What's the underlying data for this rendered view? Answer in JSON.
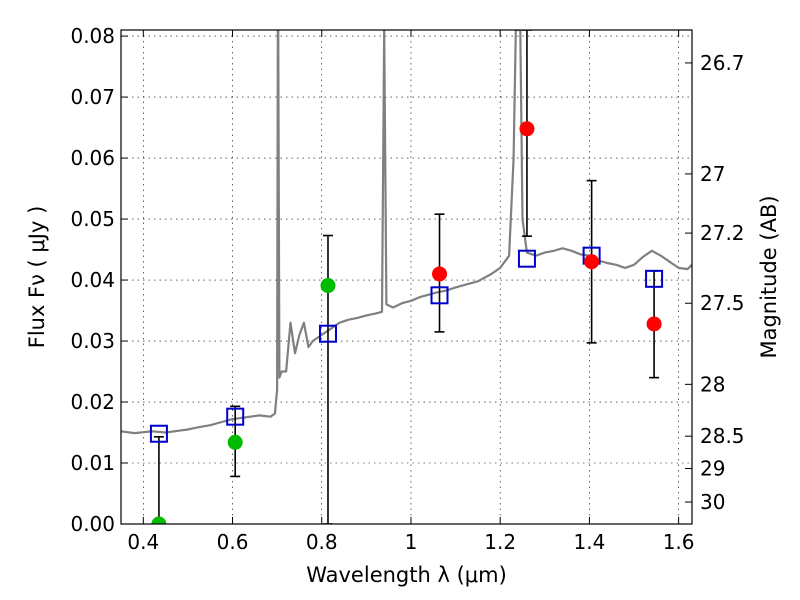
{
  "chart_data": {
    "type": "scatter",
    "xlabel": "Wavelength  λ (μm)",
    "ylabel": "Flux  Fν  ( μJy )",
    "y2label": "Magnitude (AB)",
    "xlim": [
      0.35,
      1.63
    ],
    "ylim": [
      0.0,
      0.081
    ],
    "grid": true,
    "x_ticks": [
      0.4,
      0.6,
      0.8,
      1.0,
      1.2,
      1.4,
      1.6
    ],
    "x_tick_labels": [
      "0.4",
      "0.6",
      "0.8",
      "1",
      "1.2",
      "1.4",
      "1.6"
    ],
    "y_ticks": [
      0.0,
      0.01,
      0.02,
      0.03,
      0.04,
      0.05,
      0.06,
      0.07,
      0.08
    ],
    "y_tick_labels": [
      "0.00",
      "0.01",
      "0.02",
      "0.03",
      "0.04",
      "0.05",
      "0.06",
      "0.07",
      "0.08"
    ],
    "right_axis_ticks": [
      {
        "label": "26.7",
        "flux": 0.0756
      },
      {
        "label": "27",
        "flux": 0.0574
      },
      {
        "label": "27.2",
        "flux": 0.0477
      },
      {
        "label": "27.5",
        "flux": 0.0362
      },
      {
        "label": "28",
        "flux": 0.0229
      },
      {
        "label": "28.5",
        "flux": 0.0144
      },
      {
        "label": "29",
        "flux": 0.0091
      },
      {
        "label": "30",
        "flux": 0.0036
      }
    ],
    "colors": {
      "model": "#808080",
      "model_photometry": "#0000cc",
      "measured": "#ff0000",
      "limits": "#00bb00",
      "errorbar": "#000000"
    },
    "series": [
      {
        "marker": "line",
        "values": [
          [
            0.35,
            0.0152
          ],
          [
            0.38,
            0.0149
          ],
          [
            0.42,
            0.0152
          ],
          [
            0.45,
            0.015
          ],
          [
            0.48,
            0.0153
          ],
          [
            0.5,
            0.0155
          ],
          [
            0.52,
            0.0158
          ],
          [
            0.55,
            0.0162
          ],
          [
            0.58,
            0.0168
          ],
          [
            0.6,
            0.0172
          ],
          [
            0.63,
            0.0175
          ],
          [
            0.66,
            0.0178
          ],
          [
            0.685,
            0.0176
          ],
          [
            0.695,
            0.0181
          ],
          [
            0.7,
            0.022
          ],
          [
            0.702,
            0.093
          ],
          [
            0.705,
            0.024
          ],
          [
            0.71,
            0.025
          ],
          [
            0.72,
            0.025
          ],
          [
            0.73,
            0.033
          ],
          [
            0.74,
            0.028
          ],
          [
            0.75,
            0.031
          ],
          [
            0.76,
            0.033
          ],
          [
            0.77,
            0.029
          ],
          [
            0.78,
            0.03
          ],
          [
            0.8,
            0.031
          ],
          [
            0.82,
            0.032
          ],
          [
            0.84,
            0.033
          ],
          [
            0.86,
            0.0335
          ],
          [
            0.88,
            0.0338
          ],
          [
            0.9,
            0.0342
          ],
          [
            0.92,
            0.0345
          ],
          [
            0.935,
            0.0348
          ],
          [
            0.94,
            0.081
          ],
          [
            0.945,
            0.036
          ],
          [
            0.96,
            0.0355
          ],
          [
            0.98,
            0.0362
          ],
          [
            1.0,
            0.0366
          ],
          [
            1.02,
            0.0372
          ],
          [
            1.04,
            0.0376
          ],
          [
            1.06,
            0.038
          ],
          [
            1.08,
            0.0383
          ],
          [
            1.1,
            0.0388
          ],
          [
            1.12,
            0.0392
          ],
          [
            1.15,
            0.0398
          ],
          [
            1.18,
            0.041
          ],
          [
            1.2,
            0.042
          ],
          [
            1.22,
            0.044
          ],
          [
            1.23,
            0.06
          ],
          [
            1.235,
            0.081
          ],
          [
            1.245,
            0.081
          ],
          [
            1.25,
            0.05
          ],
          [
            1.26,
            0.0445
          ],
          [
            1.28,
            0.044
          ],
          [
            1.3,
            0.0445
          ],
          [
            1.32,
            0.0448
          ],
          [
            1.34,
            0.0452
          ],
          [
            1.36,
            0.0448
          ],
          [
            1.38,
            0.0442
          ],
          [
            1.4,
            0.044
          ],
          [
            1.42,
            0.0432
          ],
          [
            1.44,
            0.0428
          ],
          [
            1.46,
            0.0425
          ],
          [
            1.48,
            0.042
          ],
          [
            1.5,
            0.0425
          ],
          [
            1.52,
            0.0438
          ],
          [
            1.54,
            0.0448
          ],
          [
            1.56,
            0.044
          ],
          [
            1.58,
            0.043
          ],
          [
            1.6,
            0.042
          ],
          [
            1.62,
            0.0418
          ],
          [
            1.63,
            0.0425
          ]
        ]
      },
      {
        "marker": "open-square",
        "color": "#0000cc",
        "points": [
          {
            "x": 0.435,
            "y": 0.0148
          },
          {
            "x": 0.606,
            "y": 0.0176
          },
          {
            "x": 0.814,
            "y": 0.0312
          },
          {
            "x": 1.064,
            "y": 0.0375
          },
          {
            "x": 1.26,
            "y": 0.0435
          },
          {
            "x": 1.405,
            "y": 0.044
          },
          {
            "x": 1.545,
            "y": 0.0402
          }
        ]
      },
      {
        "marker": "filled-circle",
        "color": "#ff0000",
        "points": [
          {
            "x": 1.064,
            "y": 0.041,
            "err": [
              0.0315,
              0.0508
            ]
          },
          {
            "x": 1.26,
            "y": 0.0648,
            "err": [
              0.0472,
              0.081
            ]
          },
          {
            "x": 1.405,
            "y": 0.043,
            "err": [
              0.0297,
              0.0563
            ]
          },
          {
            "x": 1.545,
            "y": 0.0328,
            "err": [
              0.024,
              0.0415
            ]
          }
        ]
      },
      {
        "marker": "filled-circle",
        "color": "#00bb00",
        "points": [
          {
            "x": 0.435,
            "y": 0.0,
            "err": [
              0.0,
              0.0143
            ]
          },
          {
            "x": 0.606,
            "y": 0.0134,
            "err": [
              0.0078,
              0.0193
            ]
          },
          {
            "x": 0.814,
            "y": 0.0391,
            "err": [
              0.0,
              0.0473
            ]
          }
        ]
      }
    ]
  }
}
